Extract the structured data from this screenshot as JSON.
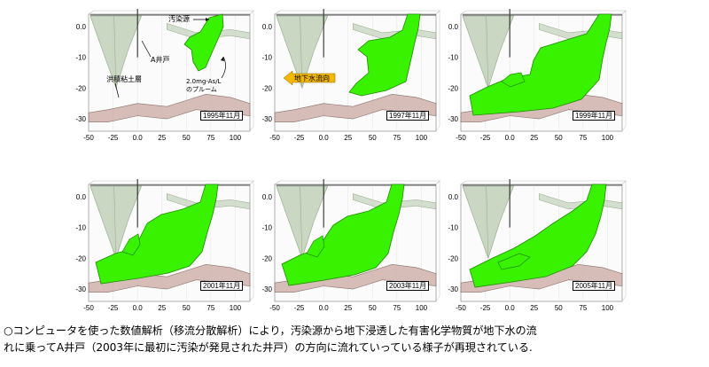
{
  "axes": {
    "y_ticks": [
      "0.0",
      "-10",
      "-20",
      "-30"
    ],
    "x_ticks": [
      "-50",
      "-25",
      "0.0",
      "25",
      "50",
      "75",
      "100"
    ]
  },
  "annotations": {
    "source": "汚染源",
    "well": "A井戸",
    "clay": "洪積粘土層",
    "plume_line1": "2.0mg-As/L",
    "plume_line2": "のプルーム",
    "flow": "地下水流向"
  },
  "panels": [
    {
      "date": "1995年11月"
    },
    {
      "date": "1997年11月"
    },
    {
      "date": "1999年11月"
    },
    {
      "date": "2001年11月"
    },
    {
      "date": "2003年11月"
    },
    {
      "date": "2005年11月"
    }
  ],
  "colors": {
    "plume": "#39f200",
    "plume_dark": "#1e8a00",
    "cone": "#b9cbb0",
    "clay": "#c9a8a0",
    "arrow": "#f5b800"
  },
  "caption": {
    "line1": "○コンピュータを使った数値解析（移流分散解析）により，汚染源から地下浸透した有害化学物質が地下水の流",
    "line2": "れに乗ってA井戸（2003年に最初に汚染が発見された井戸）の方向に流れていっている様子が再現されている."
  }
}
